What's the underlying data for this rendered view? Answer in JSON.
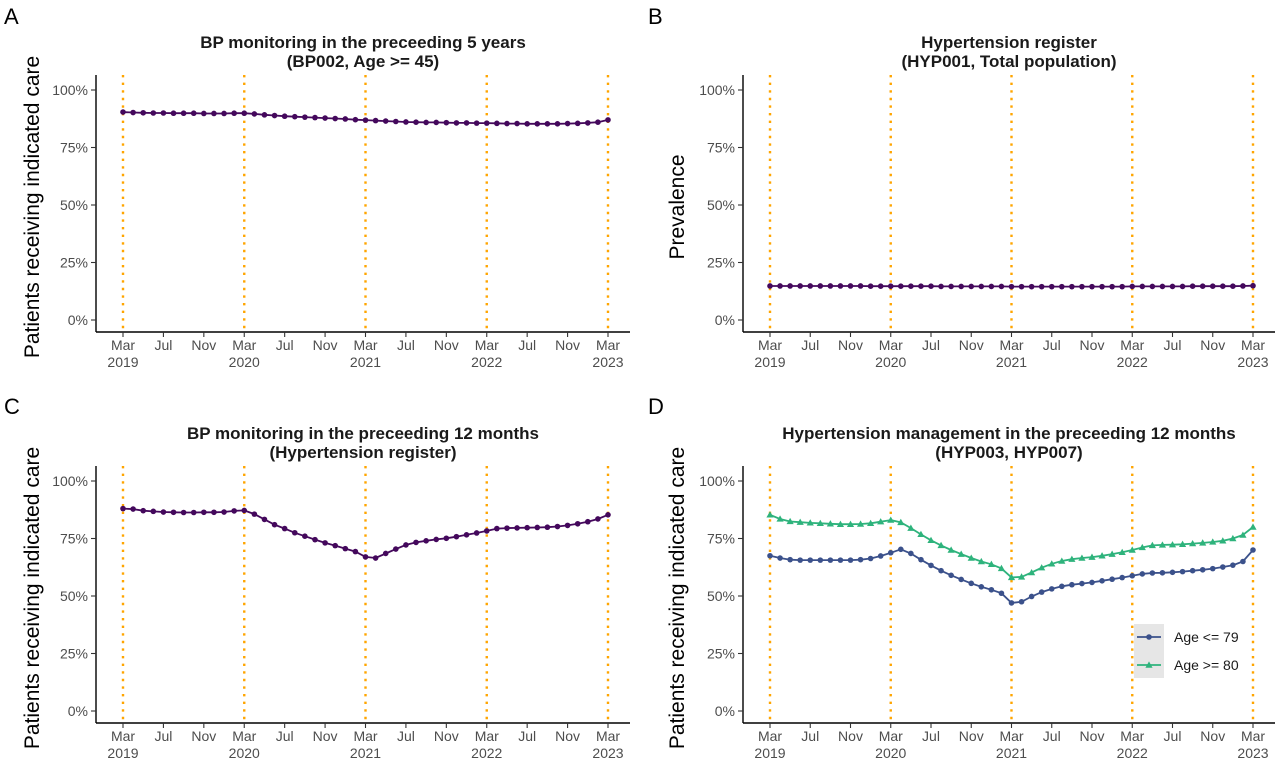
{
  "figure": {
    "x_ticks": [
      {
        "m": 0,
        "l1": "Mar",
        "l2": "2019"
      },
      {
        "m": 4,
        "l1": "Jul",
        "l2": ""
      },
      {
        "m": 8,
        "l1": "Nov",
        "l2": ""
      },
      {
        "m": 12,
        "l1": "Mar",
        "l2": "2020"
      },
      {
        "m": 16,
        "l1": "Jul",
        "l2": ""
      },
      {
        "m": 20,
        "l1": "Nov",
        "l2": ""
      },
      {
        "m": 24,
        "l1": "Mar",
        "l2": "2021"
      },
      {
        "m": 28,
        "l1": "Jul",
        "l2": ""
      },
      {
        "m": 32,
        "l1": "Nov",
        "l2": ""
      },
      {
        "m": 36,
        "l1": "Mar",
        "l2": "2022"
      },
      {
        "m": 40,
        "l1": "Jul",
        "l2": ""
      },
      {
        "m": 44,
        "l1": "Nov",
        "l2": ""
      },
      {
        "m": 48,
        "l1": "Mar",
        "l2": "2023"
      }
    ],
    "y_ticks": [
      0,
      25,
      50,
      75,
      100
    ],
    "y_tick_suffix": "%",
    "vlines_month_index": [
      0,
      12,
      24,
      36,
      48
    ],
    "vline_color": "#FFA500",
    "axis_color": "#000000"
  },
  "chart_data": [
    {
      "panel": "A",
      "type": "line",
      "title": "BP monitoring in the preceeding 5 years",
      "subtitle": "(BP002, Age >= 45)",
      "ylabel": "Patients receiving indicated care",
      "xlabel": "",
      "ylim": [
        0,
        100
      ],
      "x_range_months": [
        "Mar 2019",
        "Mar 2023"
      ],
      "series": [
        {
          "color": "#44085C",
          "marker": "circle",
          "values": [
            90.4,
            90.2,
            90.1,
            90.0,
            90.0,
            89.9,
            89.9,
            89.9,
            89.8,
            89.8,
            89.8,
            89.9,
            89.9,
            89.6,
            89.2,
            88.9,
            88.6,
            88.4,
            88.2,
            88.0,
            87.8,
            87.6,
            87.4,
            87.1,
            86.9,
            86.7,
            86.5,
            86.3,
            86.1,
            86.0,
            85.9,
            85.9,
            85.8,
            85.7,
            85.7,
            85.6,
            85.6,
            85.5,
            85.4,
            85.4,
            85.3,
            85.3,
            85.3,
            85.3,
            85.4,
            85.5,
            85.7,
            86.0,
            87.0
          ]
        }
      ]
    },
    {
      "panel": "B",
      "type": "line",
      "title": "Hypertension register",
      "subtitle": "(HYP001, Total population)",
      "ylabel": "Prevalence",
      "xlabel": "",
      "ylim": [
        0,
        100
      ],
      "x_range_months": [
        "Mar 2019",
        "Mar 2023"
      ],
      "series": [
        {
          "color": "#44085C",
          "marker": "circle",
          "values": [
            14.8,
            14.8,
            14.8,
            14.8,
            14.8,
            14.8,
            14.8,
            14.8,
            14.8,
            14.8,
            14.7,
            14.7,
            14.7,
            14.7,
            14.7,
            14.7,
            14.7,
            14.6,
            14.6,
            14.6,
            14.6,
            14.6,
            14.6,
            14.6,
            14.5,
            14.5,
            14.5,
            14.5,
            14.5,
            14.5,
            14.5,
            14.5,
            14.5,
            14.5,
            14.5,
            14.5,
            14.6,
            14.6,
            14.6,
            14.6,
            14.6,
            14.6,
            14.7,
            14.7,
            14.7,
            14.7,
            14.7,
            14.8,
            14.9
          ]
        }
      ]
    },
    {
      "panel": "C",
      "type": "line",
      "title": "BP monitoring in the preceeding 12 months",
      "subtitle": "(Hypertension register)",
      "ylabel": "Patients receiving indicated care",
      "xlabel": "",
      "ylim": [
        0,
        100
      ],
      "x_range_months": [
        "Mar 2019",
        "Mar 2023"
      ],
      "series": [
        {
          "color": "#44085C",
          "marker": "circle",
          "values": [
            88.0,
            87.8,
            87.1,
            86.8,
            86.5,
            86.4,
            86.3,
            86.3,
            86.4,
            86.4,
            86.5,
            87.0,
            87.2,
            85.6,
            83.3,
            81.0,
            79.3,
            77.5,
            76.0,
            74.5,
            73.1,
            71.9,
            70.6,
            69.3,
            67.0,
            66.5,
            68.5,
            70.4,
            72.2,
            73.3,
            74.0,
            74.6,
            75.1,
            75.8,
            76.6,
            77.4,
            78.3,
            79.3,
            79.5,
            79.6,
            79.7,
            79.8,
            79.9,
            80.2,
            80.7,
            81.4,
            82.3,
            83.5,
            85.3
          ]
        }
      ]
    },
    {
      "panel": "D",
      "type": "line",
      "title": "Hypertension management in the preceeding 12 months",
      "subtitle": "(HYP003, HYP007)",
      "ylabel": "Patients receiving indicated care",
      "xlabel": "",
      "ylim": [
        0,
        100
      ],
      "x_range_months": [
        "Mar 2019",
        "Mar 2023"
      ],
      "legend_position": "bottom-right",
      "series": [
        {
          "name": "Age <= 79",
          "color": "#3B518B",
          "marker": "circle",
          "values": [
            67.5,
            66.5,
            65.8,
            65.6,
            65.6,
            65.6,
            65.6,
            65.6,
            65.6,
            65.8,
            66.3,
            67.4,
            68.8,
            70.3,
            68.5,
            65.8,
            63.3,
            61.0,
            59.0,
            57.2,
            55.5,
            54.0,
            52.7,
            51.2,
            47.0,
            47.5,
            49.8,
            51.7,
            53.1,
            54.2,
            54.9,
            55.4,
            55.9,
            56.6,
            57.3,
            58.0,
            58.8,
            59.6,
            60.0,
            60.1,
            60.3,
            60.6,
            61.0,
            61.4,
            61.9,
            62.6,
            63.4,
            65.0,
            70.0
          ]
        },
        {
          "name": "Age >= 80",
          "color": "#2EB37C",
          "marker": "triangle",
          "values": [
            85.3,
            83.5,
            82.4,
            82.1,
            81.8,
            81.6,
            81.4,
            81.2,
            81.2,
            81.3,
            81.6,
            82.3,
            83.0,
            82.0,
            79.5,
            76.8,
            74.2,
            72.0,
            70.0,
            68.2,
            66.5,
            65.0,
            63.8,
            62.0,
            58.1,
            58.3,
            60.2,
            62.3,
            64.0,
            65.2,
            66.0,
            66.5,
            66.9,
            67.5,
            68.2,
            69.0,
            70.0,
            71.1,
            72.0,
            72.2,
            72.3,
            72.5,
            72.8,
            73.1,
            73.5,
            74.0,
            75.0,
            76.5,
            80.0
          ]
        }
      ]
    }
  ]
}
